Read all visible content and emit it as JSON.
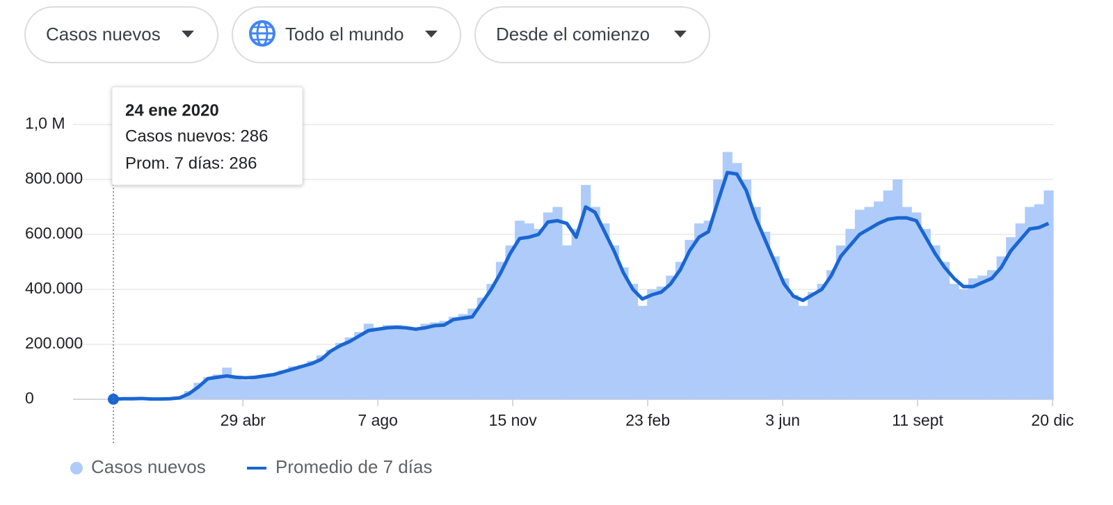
{
  "controls": {
    "metric": "Casos nuevos",
    "region": "Todo el mundo",
    "period": "Desde el comienzo"
  },
  "tooltip": {
    "date": "24 ene 2020",
    "cases": "Casos nuevos: 286",
    "average": "Prom. 7 días: 286"
  },
  "chart_data": {
    "type": "combo",
    "x": [
      0,
      7,
      14,
      21,
      28,
      35,
      42,
      49,
      56,
      63,
      70,
      77,
      84,
      91,
      98,
      105,
      112,
      119,
      126,
      133,
      140,
      147,
      154,
      161,
      168,
      175,
      182,
      189,
      196,
      203,
      210,
      217,
      224,
      231,
      238,
      245,
      252,
      259,
      266,
      273,
      280,
      287,
      294,
      301,
      308,
      315,
      322,
      329,
      336,
      343,
      350,
      357,
      364,
      371,
      378,
      385,
      392,
      399,
      406,
      413,
      420,
      427,
      434,
      441,
      448,
      455,
      462,
      469,
      476,
      483,
      490,
      497,
      504,
      511,
      518,
      525,
      532,
      539,
      546,
      553,
      560,
      567,
      574,
      581,
      588,
      595,
      602,
      609,
      616,
      623,
      630,
      637,
      644,
      651,
      658,
      665,
      672,
      679,
      686,
      693
    ],
    "xlim": [
      0,
      698
    ],
    "xticks": [
      {
        "value": 96,
        "label": "29 abr"
      },
      {
        "value": 196,
        "label": "7 ago"
      },
      {
        "value": 296,
        "label": "15 nov"
      },
      {
        "value": 396,
        "label": "23 feb"
      },
      {
        "value": 496,
        "label": "3 jun"
      },
      {
        "value": 596,
        "label": "11 sept"
      },
      {
        "value": 696,
        "label": "20 dic"
      }
    ],
    "ylim": [
      0,
      1000000
    ],
    "yticks": [
      0,
      {
        "value": 200000,
        "label": "200.000"
      },
      {
        "value": 400000,
        "label": "400.000"
      },
      {
        "value": 600000,
        "label": "600.000"
      },
      {
        "value": 800000,
        "label": "800.000"
      },
      {
        "value": 1000000,
        "label": "1,0 M"
      }
    ],
    "grid": true,
    "series": [
      {
        "name": "Casos nuevos",
        "type": "bar",
        "color": "#aecbfa",
        "values": [
          286,
          2000,
          3000,
          4000,
          1000,
          1000,
          3000,
          8000,
          30000,
          60000,
          80000,
          90000,
          115000,
          85000,
          70000,
          82000,
          90000,
          95000,
          105000,
          120000,
          125000,
          140000,
          160000,
          180000,
          205000,
          225000,
          245000,
          275000,
          260000,
          270000,
          270000,
          265000,
          250000,
          275000,
          280000,
          285000,
          300000,
          310000,
          330000,
          370000,
          420000,
          500000,
          560000,
          650000,
          640000,
          620000,
          680000,
          700000,
          560000,
          620000,
          780000,
          700000,
          640000,
          560000,
          480000,
          420000,
          340000,
          400000,
          410000,
          450000,
          500000,
          580000,
          640000,
          650000,
          800000,
          900000,
          860000,
          800000,
          700000,
          610000,
          520000,
          440000,
          380000,
          340000,
          390000,
          420000,
          470000,
          560000,
          620000,
          690000,
          700000,
          720000,
          760000,
          800000,
          700000,
          680000,
          620000,
          560000,
          500000,
          420000,
          400000,
          440000,
          450000,
          470000,
          520000,
          590000,
          640000,
          700000,
          710000,
          760000
        ]
      },
      {
        "name": "Promedio de 7 días",
        "type": "line",
        "color": "#1a66d2",
        "values": [
          286,
          2000,
          2000,
          3000,
          1000,
          1000,
          2000,
          5000,
          20000,
          45000,
          75000,
          80000,
          85000,
          80000,
          78000,
          80000,
          85000,
          90000,
          100000,
          110000,
          120000,
          130000,
          145000,
          175000,
          195000,
          210000,
          230000,
          250000,
          255000,
          260000,
          262000,
          260000,
          255000,
          260000,
          268000,
          270000,
          290000,
          295000,
          300000,
          350000,
          400000,
          460000,
          530000,
          585000,
          590000,
          600000,
          645000,
          650000,
          640000,
          590000,
          700000,
          680000,
          610000,
          540000,
          460000,
          400000,
          365000,
          380000,
          390000,
          420000,
          470000,
          540000,
          590000,
          610000,
          720000,
          825000,
          820000,
          760000,
          660000,
          580000,
          500000,
          420000,
          375000,
          360000,
          380000,
          400000,
          450000,
          520000,
          560000,
          600000,
          620000,
          640000,
          655000,
          660000,
          660000,
          650000,
          590000,
          530000,
          480000,
          440000,
          410000,
          410000,
          425000,
          440000,
          480000,
          540000,
          580000,
          620000,
          625000,
          640000
        ]
      }
    ]
  }
}
